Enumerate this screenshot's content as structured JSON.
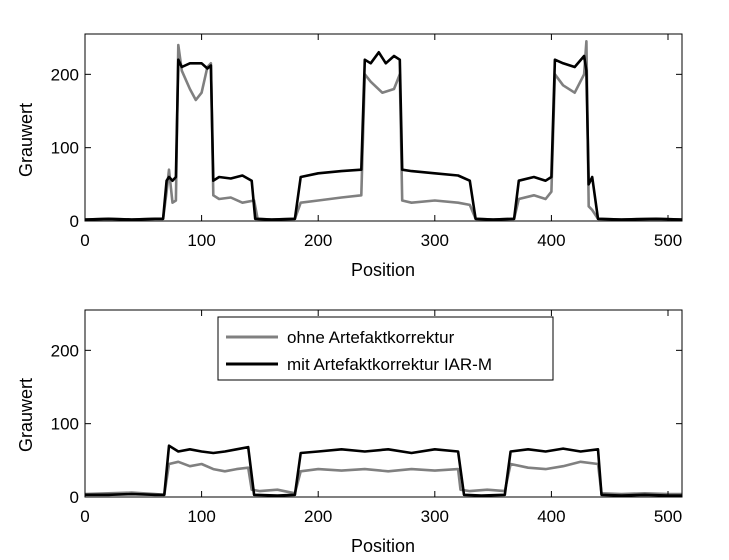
{
  "chart_data": [
    {
      "type": "line",
      "xlabel": "Position",
      "ylabel": "Grauwert",
      "xlim": [
        0,
        512
      ],
      "ylim": [
        0,
        255
      ],
      "xticks": [
        0,
        100,
        200,
        300,
        400,
        500
      ],
      "yticks": [
        0,
        100,
        200
      ],
      "grid": false,
      "series": [
        {
          "color": "#808080",
          "points": [
            [
              0,
              2
            ],
            [
              20,
              3
            ],
            [
              40,
              2
            ],
            [
              60,
              3
            ],
            [
              67,
              3
            ],
            [
              70,
              40
            ],
            [
              72,
              70
            ],
            [
              75,
              25
            ],
            [
              78,
              28
            ],
            [
              80,
              240
            ],
            [
              83,
              205
            ],
            [
              90,
              180
            ],
            [
              95,
              165
            ],
            [
              100,
              175
            ],
            [
              105,
              210
            ],
            [
              108,
              215
            ],
            [
              110,
              35
            ],
            [
              115,
              30
            ],
            [
              125,
              32
            ],
            [
              135,
              25
            ],
            [
              145,
              28
            ],
            [
              148,
              3
            ],
            [
              160,
              2
            ],
            [
              180,
              3
            ],
            [
              185,
              25
            ],
            [
              200,
              28
            ],
            [
              220,
              32
            ],
            [
              237,
              35
            ],
            [
              240,
              200
            ],
            [
              245,
              190
            ],
            [
              255,
              175
            ],
            [
              265,
              180
            ],
            [
              270,
              200
            ],
            [
              272,
              28
            ],
            [
              280,
              25
            ],
            [
              300,
              28
            ],
            [
              320,
              25
            ],
            [
              330,
              22
            ],
            [
              335,
              3
            ],
            [
              350,
              2
            ],
            [
              368,
              3
            ],
            [
              372,
              30
            ],
            [
              385,
              35
            ],
            [
              395,
              30
            ],
            [
              400,
              40
            ],
            [
              403,
              200
            ],
            [
              410,
              185
            ],
            [
              420,
              175
            ],
            [
              428,
              200
            ],
            [
              430,
              245
            ],
            [
              432,
              20
            ],
            [
              435,
              15
            ],
            [
              440,
              3
            ],
            [
              460,
              2
            ],
            [
              490,
              3
            ],
            [
              512,
              2
            ]
          ]
        },
        {
          "color": "#000000",
          "points": [
            [
              0,
              2
            ],
            [
              20,
              3
            ],
            [
              40,
              2
            ],
            [
              60,
              3
            ],
            [
              67,
              3
            ],
            [
              70,
              55
            ],
            [
              72,
              60
            ],
            [
              75,
              55
            ],
            [
              78,
              60
            ],
            [
              80,
              220
            ],
            [
              83,
              210
            ],
            [
              90,
              215
            ],
            [
              100,
              215
            ],
            [
              105,
              208
            ],
            [
              108,
              212
            ],
            [
              110,
              55
            ],
            [
              115,
              60
            ],
            [
              125,
              58
            ],
            [
              135,
              62
            ],
            [
              143,
              55
            ],
            [
              146,
              3
            ],
            [
              160,
              2
            ],
            [
              180,
              3
            ],
            [
              185,
              60
            ],
            [
              200,
              65
            ],
            [
              220,
              68
            ],
            [
              237,
              70
            ],
            [
              240,
              220
            ],
            [
              245,
              215
            ],
            [
              252,
              230
            ],
            [
              258,
              215
            ],
            [
              265,
              225
            ],
            [
              270,
              220
            ],
            [
              272,
              70
            ],
            [
              280,
              68
            ],
            [
              300,
              65
            ],
            [
              320,
              62
            ],
            [
              330,
              55
            ],
            [
              335,
              3
            ],
            [
              350,
              2
            ],
            [
              368,
              3
            ],
            [
              372,
              55
            ],
            [
              385,
              60
            ],
            [
              395,
              55
            ],
            [
              400,
              60
            ],
            [
              403,
              220
            ],
            [
              410,
              215
            ],
            [
              420,
              210
            ],
            [
              428,
              225
            ],
            [
              430,
              205
            ],
            [
              432,
              50
            ],
            [
              435,
              60
            ],
            [
              440,
              3
            ],
            [
              460,
              2
            ],
            [
              490,
              3
            ],
            [
              512,
              2
            ]
          ]
        }
      ]
    },
    {
      "type": "line",
      "xlabel": "Position",
      "ylabel": "Grauwert",
      "xlim": [
        0,
        512
      ],
      "ylim": [
        0,
        255
      ],
      "xticks": [
        0,
        100,
        200,
        300,
        400,
        500
      ],
      "yticks": [
        0,
        100,
        200
      ],
      "grid": false,
      "legend": {
        "placement": "top-center",
        "entries": [
          {
            "label": "ohne Artefaktkorrektur",
            "color": "#808080"
          },
          {
            "label": "mit Artefaktkorrektur IAR-M",
            "color": "#000000"
          }
        ]
      },
      "series": [
        {
          "name": "ohne Artefaktkorrektur",
          "color": "#808080",
          "points": [
            [
              0,
              4
            ],
            [
              20,
              5
            ],
            [
              40,
              6
            ],
            [
              60,
              4
            ],
            [
              68,
              3
            ],
            [
              72,
              45
            ],
            [
              80,
              48
            ],
            [
              90,
              42
            ],
            [
              100,
              45
            ],
            [
              110,
              38
            ],
            [
              120,
              35
            ],
            [
              130,
              38
            ],
            [
              140,
              40
            ],
            [
              143,
              10
            ],
            [
              150,
              8
            ],
            [
              165,
              10
            ],
            [
              180,
              5
            ],
            [
              185,
              35
            ],
            [
              200,
              38
            ],
            [
              220,
              36
            ],
            [
              240,
              38
            ],
            [
              260,
              35
            ],
            [
              280,
              38
            ],
            [
              300,
              36
            ],
            [
              320,
              38
            ],
            [
              322,
              10
            ],
            [
              330,
              8
            ],
            [
              345,
              10
            ],
            [
              360,
              8
            ],
            [
              365,
              45
            ],
            [
              380,
              40
            ],
            [
              395,
              38
            ],
            [
              410,
              42
            ],
            [
              425,
              48
            ],
            [
              440,
              45
            ],
            [
              443,
              5
            ],
            [
              460,
              4
            ],
            [
              480,
              5
            ],
            [
              500,
              4
            ],
            [
              512,
              4
            ]
          ]
        },
        {
          "name": "mit Artefaktkorrektur IAR-M",
          "color": "#000000",
          "points": [
            [
              0,
              3
            ],
            [
              20,
              3
            ],
            [
              40,
              4
            ],
            [
              60,
              3
            ],
            [
              68,
              3
            ],
            [
              72,
              70
            ],
            [
              80,
              62
            ],
            [
              90,
              65
            ],
            [
              100,
              62
            ],
            [
              110,
              60
            ],
            [
              120,
              62
            ],
            [
              130,
              65
            ],
            [
              140,
              68
            ],
            [
              145,
              3
            ],
            [
              165,
              2
            ],
            [
              180,
              3
            ],
            [
              185,
              60
            ],
            [
              200,
              62
            ],
            [
              220,
              65
            ],
            [
              240,
              62
            ],
            [
              260,
              65
            ],
            [
              280,
              60
            ],
            [
              300,
              65
            ],
            [
              320,
              62
            ],
            [
              325,
              3
            ],
            [
              340,
              2
            ],
            [
              360,
              3
            ],
            [
              365,
              62
            ],
            [
              380,
              65
            ],
            [
              395,
              62
            ],
            [
              410,
              66
            ],
            [
              425,
              62
            ],
            [
              440,
              65
            ],
            [
              443,
              3
            ],
            [
              460,
              2
            ],
            [
              480,
              3
            ],
            [
              500,
              2
            ],
            [
              512,
              2
            ]
          ]
        }
      ]
    }
  ]
}
